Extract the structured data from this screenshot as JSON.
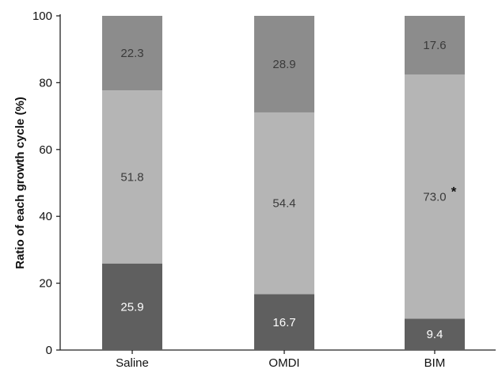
{
  "chart_data": {
    "type": "bar",
    "stacked": true,
    "categories": [
      "Saline",
      "OMDI",
      "BIM"
    ],
    "series": [
      {
        "values": [
          25.9,
          16.7,
          9.4
        ],
        "color": "#5f5f5f",
        "label_color": "#ffffff"
      },
      {
        "values": [
          51.8,
          54.4,
          73.0
        ],
        "color": "#b5b5b5",
        "label_color": "#3a3a3a"
      },
      {
        "values": [
          22.3,
          28.9,
          17.6
        ],
        "color": "#8c8c8c",
        "label_color": "#3a3a3a"
      }
    ],
    "xlabel": "",
    "ylabel": "Ratio of each growth cycle (%)",
    "ylim": [
      0,
      100
    ],
    "yticks": [
      0,
      20,
      40,
      60,
      80,
      100
    ],
    "annotations": [
      {
        "category": "BIM",
        "series_index": 1,
        "text": "*"
      }
    ],
    "grid": false,
    "legend": "none"
  }
}
